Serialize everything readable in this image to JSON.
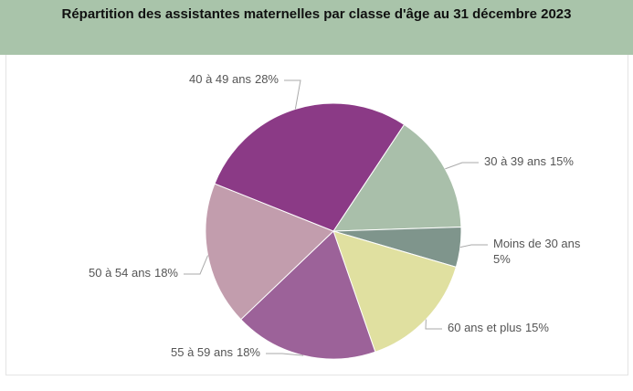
{
  "chart_data": {
    "type": "pie",
    "title": "Répartition des assistantes maternelles par classe d'âge au 31 décembre 2023",
    "categories": [
      "30 à 39 ans",
      "Moins de 30 ans",
      "60 ans et plus",
      "55 à 59 ans",
      "50 à 54 ans",
      "40 à 49 ans"
    ],
    "values": [
      15,
      5,
      15,
      18,
      18,
      28
    ],
    "value_labels": [
      "15%",
      "5%",
      "15%",
      "18%",
      "18%",
      "28%"
    ],
    "colors": [
      "#a9bfaa",
      "#7f958c",
      "#e0e0a0",
      "#9c6299",
      "#c29dad",
      "#8b3a86"
    ]
  }
}
